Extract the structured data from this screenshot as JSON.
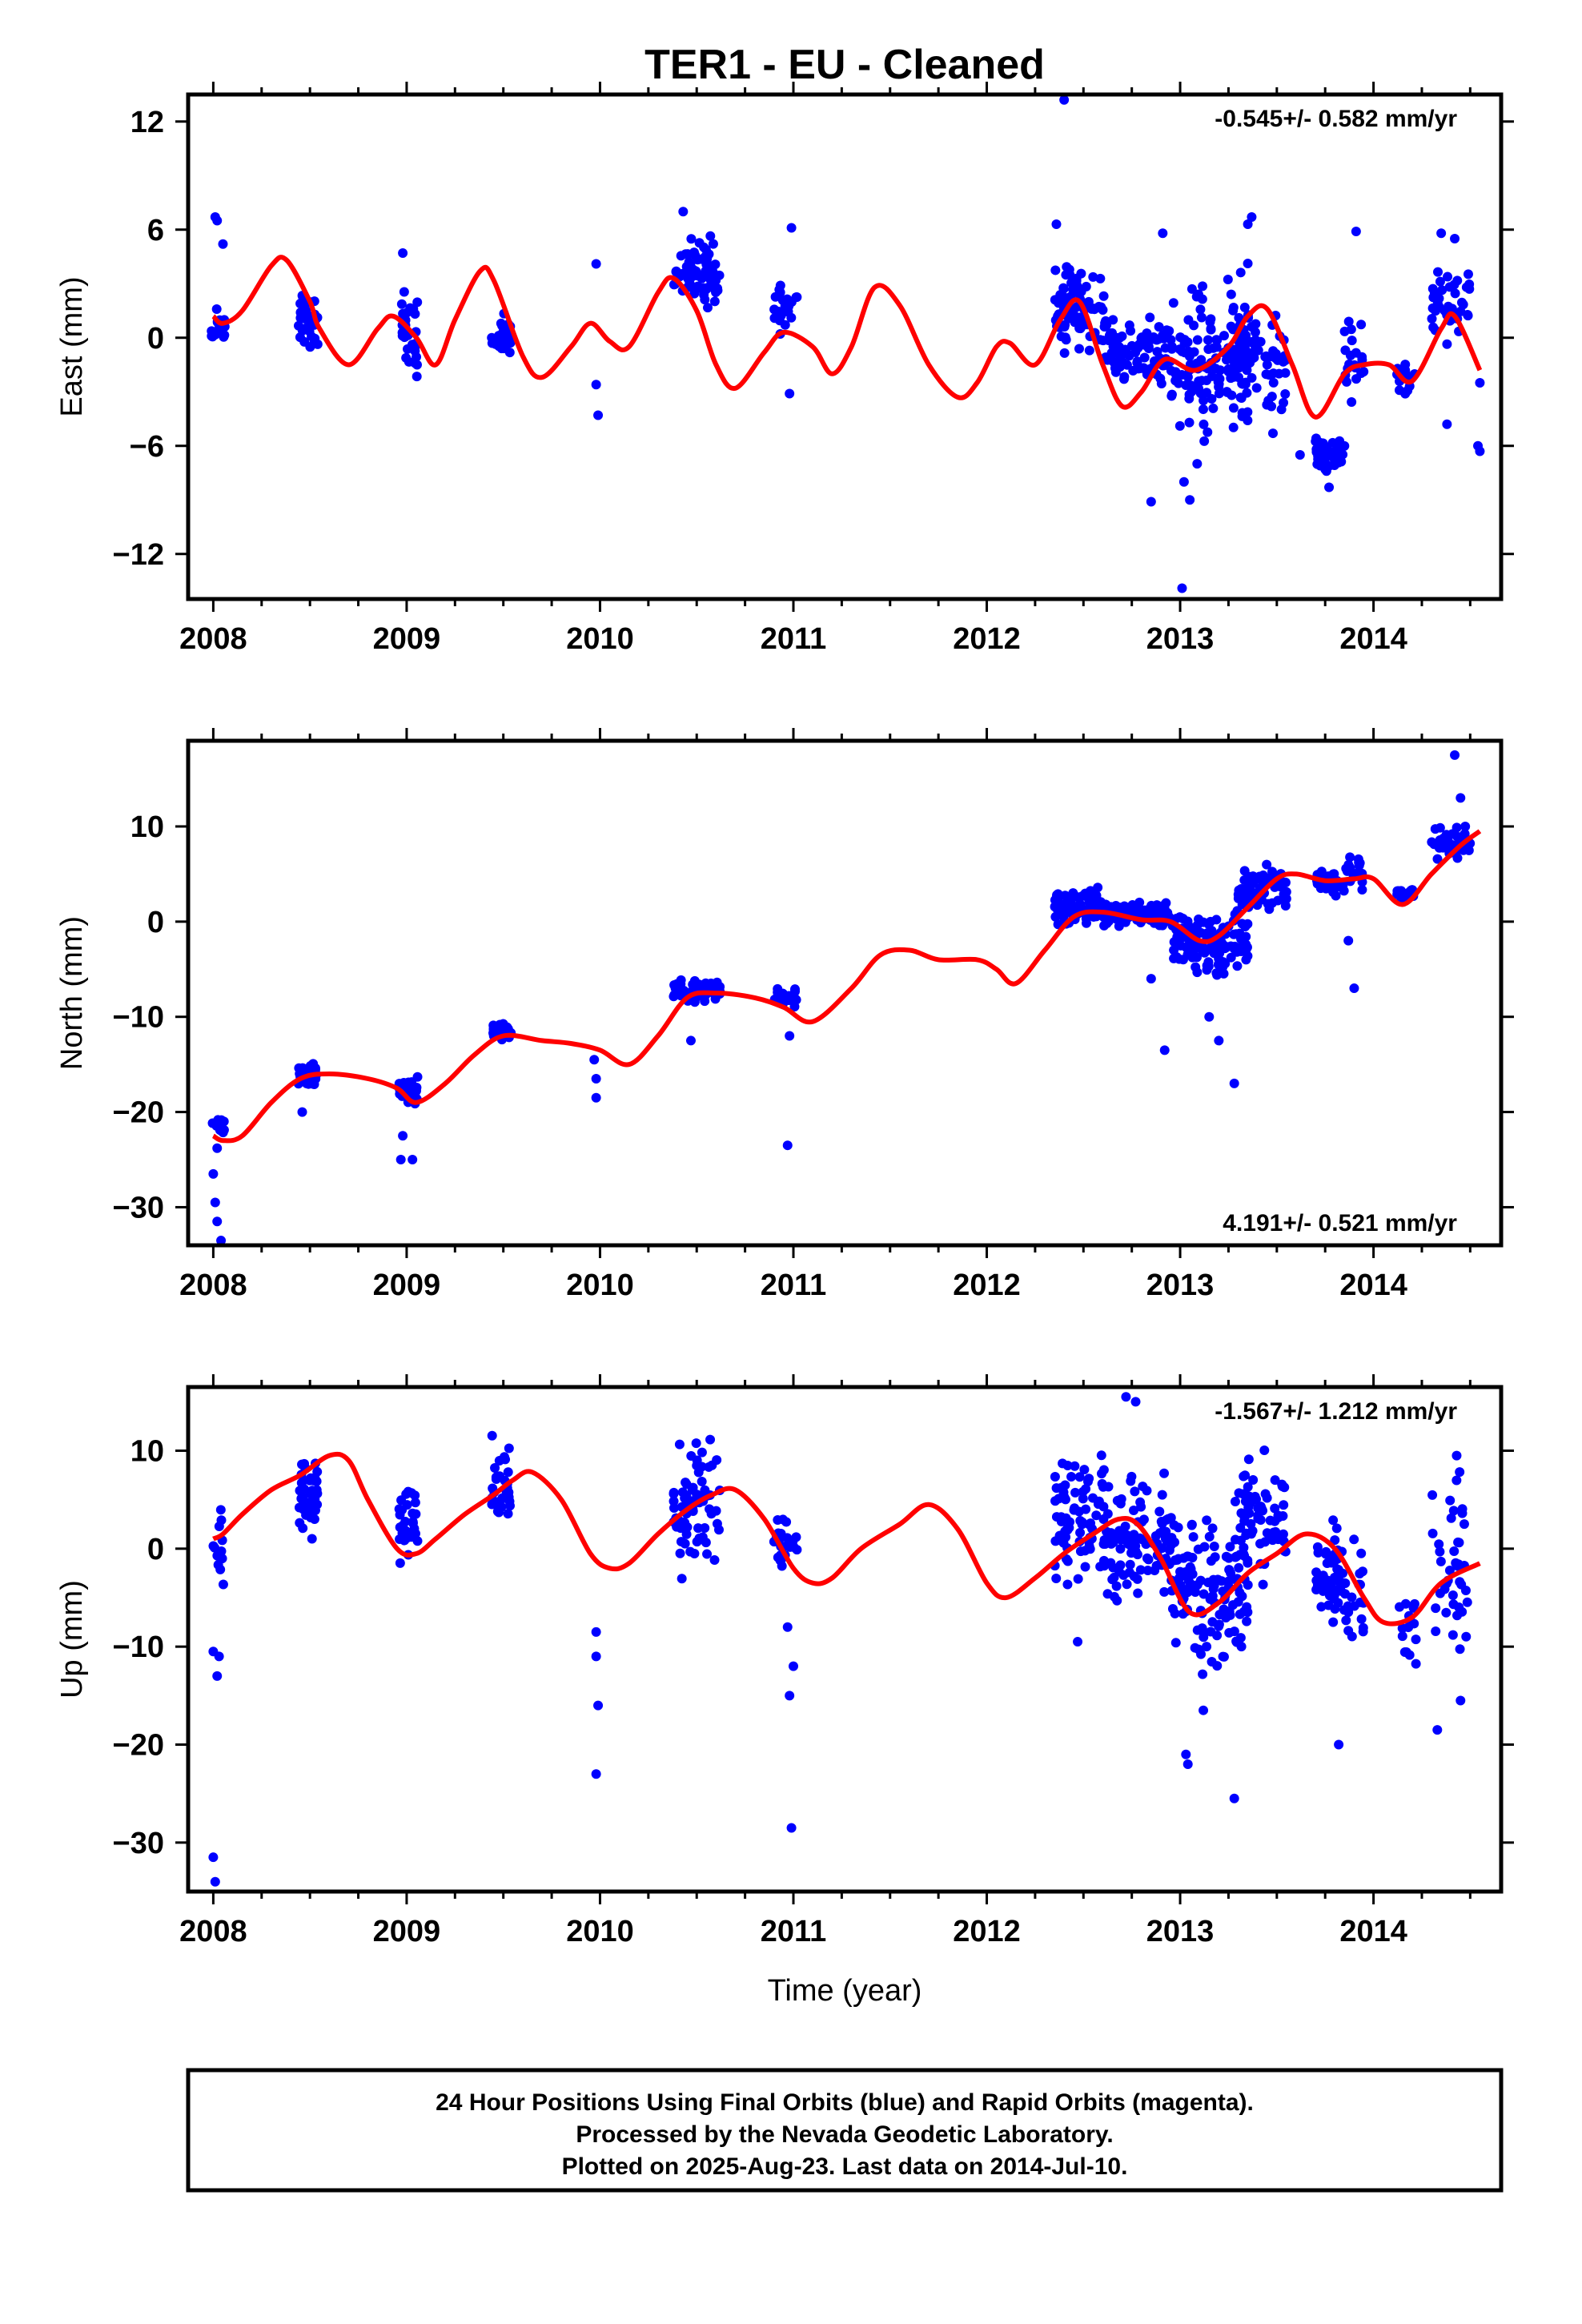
{
  "title": "TER1  - EU - Cleaned",
  "xlabel": "Time (year)",
  "footer": {
    "lines": [
      "24 Hour Positions Using Final Orbits (blue) and Rapid Orbits (magenta).",
      "Processed by the Nevada Geodetic Laboratory.",
      "Plotted on 2025-Aug-23. Last data on 2014-Jul-10."
    ]
  },
  "colors": {
    "points": "#0000ff",
    "fit": "#ff0000",
    "frame": "#000000"
  },
  "chart_data": [
    {
      "type": "scatter",
      "ylabel": "East (mm)",
      "rate_text": "-0.545+/- 0.582 mm/yr",
      "xlim": [
        2007.87,
        2014.66
      ],
      "ylim": [
        -14.5,
        13.5
      ],
      "xticks": [
        2008,
        2009,
        2010,
        2011,
        2012,
        2013,
        2014
      ],
      "yticks": [
        12,
        6,
        0,
        -6,
        -12
      ],
      "ytick_labels": [
        "12",
        "6",
        "0",
        "−6",
        "−12"
      ],
      "clusters": [
        {
          "x": [
            2007.99,
            2008.06
          ],
          "y": [
            -1.5,
            2.5
          ],
          "n": 14
        },
        {
          "x": [
            2008.44,
            2008.54
          ],
          "y": [
            -1.5,
            3.5
          ],
          "n": 40
        },
        {
          "x": [
            2008.96,
            2009.06
          ],
          "y": [
            -3.0,
            3.5
          ],
          "n": 30
        },
        {
          "x": [
            2009.44,
            2009.54
          ],
          "y": [
            -1.5,
            1.8
          ],
          "n": 30
        },
        {
          "x": [
            2010.38,
            2010.62
          ],
          "y": [
            1.0,
            6.0
          ],
          "n": 70
        },
        {
          "x": [
            2010.9,
            2011.02
          ],
          "y": [
            -0.5,
            3.5
          ],
          "n": 24
        },
        {
          "x": [
            2012.35,
            2012.62
          ],
          "y": [
            -1.5,
            5.0
          ],
          "n": 80
        },
        {
          "x": [
            2012.6,
            2012.95
          ],
          "y": [
            -3.5,
            2.0
          ],
          "n": 90
        },
        {
          "x": [
            2012.95,
            2013.35
          ],
          "y": [
            -7.5,
            5.0
          ],
          "n": 130
        },
        {
          "x": [
            2013.3,
            2013.55
          ],
          "y": [
            -6.0,
            3.0
          ],
          "n": 70
        },
        {
          "x": [
            2013.7,
            2013.85
          ],
          "y": [
            -8.0,
            -5.0
          ],
          "n": 50
        },
        {
          "x": [
            2013.85,
            2013.95
          ],
          "y": [
            -4.0,
            2.0
          ],
          "n": 20
        },
        {
          "x": [
            2014.12,
            2014.22
          ],
          "y": [
            -4.0,
            -0.5
          ],
          "n": 15
        },
        {
          "x": [
            2014.3,
            2014.5
          ],
          "y": [
            -1.0,
            5.0
          ],
          "n": 40
        }
      ],
      "outliers": [
        {
          "x": 2008.01,
          "y": 6.7
        },
        {
          "x": 2008.02,
          "y": 6.5
        },
        {
          "x": 2008.05,
          "y": 5.2
        },
        {
          "x": 2008.98,
          "y": 4.7
        },
        {
          "x": 2009.98,
          "y": 4.1
        },
        {
          "x": 2009.98,
          "y": -2.6
        },
        {
          "x": 2009.99,
          "y": -4.3
        },
        {
          "x": 2010.43,
          "y": 7.0
        },
        {
          "x": 2010.99,
          "y": 6.1
        },
        {
          "x": 2010.98,
          "y": -3.1
        },
        {
          "x": 2012.4,
          "y": 13.2
        },
        {
          "x": 2012.36,
          "y": 6.3
        },
        {
          "x": 2012.85,
          "y": -9.1
        },
        {
          "x": 2012.91,
          "y": 5.8
        },
        {
          "x": 2013.01,
          "y": -13.9
        },
        {
          "x": 2013.05,
          "y": -9.0
        },
        {
          "x": 2013.02,
          "y": -8.0
        },
        {
          "x": 2013.37,
          "y": 6.7
        },
        {
          "x": 2013.35,
          "y": 6.3
        },
        {
          "x": 2013.62,
          "y": -6.5
        },
        {
          "x": 2013.91,
          "y": 5.9
        },
        {
          "x": 2013.77,
          "y": -8.3
        },
        {
          "x": 2014.35,
          "y": 5.8
        },
        {
          "x": 2014.42,
          "y": 5.5
        },
        {
          "x": 2014.38,
          "y": -4.8
        },
        {
          "x": 2014.55,
          "y": -2.5
        },
        {
          "x": 2014.54,
          "y": -6.0
        },
        {
          "x": 2014.55,
          "y": -6.3
        }
      ],
      "fit": {
        "x": [
          2008.0,
          2008.05,
          2008.15,
          2008.3,
          2008.38,
          2008.5,
          2008.55,
          2008.7,
          2008.85,
          2008.93,
          2009.05,
          2009.15,
          2009.25,
          2009.38,
          2009.45,
          2009.6,
          2009.7,
          2009.85,
          2009.95,
          2010.05,
          2010.15,
          2010.3,
          2010.38,
          2010.5,
          2010.6,
          2010.7,
          2010.85,
          2010.95,
          2011.1,
          2011.2,
          2011.3,
          2011.42,
          2011.55,
          2011.7,
          2011.85,
          2011.95,
          2012.05,
          2012.12,
          2012.25,
          2012.38,
          2012.48,
          2012.6,
          2012.7,
          2012.8,
          2012.92,
          2013.08,
          2013.25,
          2013.35,
          2013.45,
          2013.58,
          2013.7,
          2013.85,
          2013.95,
          2014.08,
          2014.2,
          2014.35,
          2014.42,
          2014.55
        ],
        "y": [
          1.2,
          0.8,
          1.5,
          4.0,
          4.3,
          2.0,
          0.5,
          -1.5,
          0.5,
          1.2,
          0.0,
          -1.5,
          1.0,
          3.7,
          3.2,
          -1.0,
          -2.2,
          -0.5,
          0.8,
          -0.2,
          -0.5,
          2.5,
          3.3,
          1.5,
          -1.5,
          -2.8,
          -0.8,
          0.3,
          -0.5,
          -2.0,
          -0.5,
          2.8,
          1.8,
          -1.5,
          -3.3,
          -2.5,
          -0.5,
          -0.3,
          -1.5,
          1.0,
          2.0,
          -1.5,
          -3.8,
          -3.0,
          -1.2,
          -1.8,
          -0.5,
          1.2,
          1.6,
          -1.5,
          -4.4,
          -2.0,
          -1.5,
          -1.5,
          -2.4,
          0.5,
          1.2,
          -1.8
        ]
      }
    },
    {
      "type": "scatter",
      "ylabel": "North (mm)",
      "rate_text": "4.191+/- 0.521 mm/yr",
      "xlim": [
        2007.87,
        2014.66
      ],
      "ylim": [
        -34,
        19
      ],
      "xticks": [
        2008,
        2009,
        2010,
        2011,
        2012,
        2013,
        2014
      ],
      "yticks": [
        10,
        0,
        -10,
        -20,
        -30
      ],
      "ytick_labels": [
        "10",
        "0",
        "−10",
        "−20",
        "−30"
      ],
      "clusters": [
        {
          "x": [
            2007.99,
            2008.06
          ],
          "y": [
            -23.0,
            -20.0
          ],
          "n": 14
        },
        {
          "x": [
            2008.44,
            2008.54
          ],
          "y": [
            -17.5,
            -14.5
          ],
          "n": 40
        },
        {
          "x": [
            2008.96,
            2009.06
          ],
          "y": [
            -20.0,
            -15.5
          ],
          "n": 30
        },
        {
          "x": [
            2009.44,
            2009.54
          ],
          "y": [
            -12.5,
            -10.5
          ],
          "n": 30
        },
        {
          "x": [
            2010.38,
            2010.62
          ],
          "y": [
            -9.0,
            -5.5
          ],
          "n": 70
        },
        {
          "x": [
            2010.9,
            2011.02
          ],
          "y": [
            -9.5,
            -6.5
          ],
          "n": 24
        },
        {
          "x": [
            2012.35,
            2012.62
          ],
          "y": [
            -1.0,
            4.0
          ],
          "n": 80
        },
        {
          "x": [
            2012.6,
            2012.95
          ],
          "y": [
            -1.0,
            2.5
          ],
          "n": 90
        },
        {
          "x": [
            2012.95,
            2013.35
          ],
          "y": [
            -7.0,
            2.5
          ],
          "n": 130
        },
        {
          "x": [
            2013.3,
            2013.55
          ],
          "y": [
            0.5,
            6.5
          ],
          "n": 70
        },
        {
          "x": [
            2013.7,
            2013.85
          ],
          "y": [
            2.0,
            6.0
          ],
          "n": 50
        },
        {
          "x": [
            2013.85,
            2013.95
          ],
          "y": [
            3.0,
            7.5
          ],
          "n": 20
        },
        {
          "x": [
            2014.12,
            2014.22
          ],
          "y": [
            2.0,
            4.0
          ],
          "n": 15
        },
        {
          "x": [
            2014.3,
            2014.5
          ],
          "y": [
            6.0,
            11.0
          ],
          "n": 40
        }
      ],
      "outliers": [
        {
          "x": 2008.0,
          "y": -26.5
        },
        {
          "x": 2008.01,
          "y": -29.5
        },
        {
          "x": 2008.02,
          "y": -31.5
        },
        {
          "x": 2008.04,
          "y": -33.5
        },
        {
          "x": 2008.02,
          "y": -23.8
        },
        {
          "x": 2008.46,
          "y": -20.0
        },
        {
          "x": 2008.97,
          "y": -25.0
        },
        {
          "x": 2009.03,
          "y": -25.0
        },
        {
          "x": 2008.98,
          "y": -22.5
        },
        {
          "x": 2009.98,
          "y": -18.5
        },
        {
          "x": 2009.98,
          "y": -16.5
        },
        {
          "x": 2009.97,
          "y": -14.5
        },
        {
          "x": 2010.47,
          "y": -12.5
        },
        {
          "x": 2010.97,
          "y": -23.5
        },
        {
          "x": 2010.98,
          "y": -12.0
        },
        {
          "x": 2012.92,
          "y": -13.5
        },
        {
          "x": 2013.2,
          "y": -12.5
        },
        {
          "x": 2013.28,
          "y": -17.0
        },
        {
          "x": 2013.15,
          "y": -10.0
        },
        {
          "x": 2012.85,
          "y": -6.0
        },
        {
          "x": 2013.9,
          "y": -7.0
        },
        {
          "x": 2013.87,
          "y": -2.0
        },
        {
          "x": 2014.42,
          "y": 17.5
        },
        {
          "x": 2014.45,
          "y": 13.0
        }
      ],
      "fit": {
        "x": [
          2008.0,
          2008.05,
          2008.15,
          2008.3,
          2008.45,
          2008.6,
          2008.8,
          2008.95,
          2009.05,
          2009.2,
          2009.35,
          2009.5,
          2009.7,
          2009.85,
          2010.0,
          2010.15,
          2010.3,
          2010.45,
          2010.6,
          2010.8,
          2010.95,
          2011.1,
          2011.3,
          2011.45,
          2011.6,
          2011.75,
          2011.95,
          2012.05,
          2012.15,
          2012.3,
          2012.45,
          2012.6,
          2012.8,
          2012.95,
          2013.1,
          2013.2,
          2013.35,
          2013.5,
          2013.6,
          2013.75,
          2013.9,
          2014.0,
          2014.15,
          2014.3,
          2014.45,
          2014.55
        ],
        "y": [
          -22.5,
          -23.0,
          -22.5,
          -19.0,
          -16.5,
          -16.0,
          -16.5,
          -17.5,
          -19.0,
          -17.0,
          -14.0,
          -12.0,
          -12.5,
          -12.8,
          -13.5,
          -15.0,
          -12.0,
          -8.0,
          -7.5,
          -8.0,
          -9.0,
          -10.5,
          -7.0,
          -3.5,
          -3.0,
          -4.0,
          -4.0,
          -5.0,
          -6.5,
          -3.0,
          0.5,
          1.0,
          0.2,
          0.0,
          -2.0,
          -1.5,
          1.5,
          4.5,
          5.0,
          4.3,
          4.5,
          4.5,
          1.8,
          5.0,
          8.0,
          9.5
        ]
      }
    },
    {
      "type": "scatter",
      "ylabel": "Up (mm)",
      "rate_text": "-1.567+/- 1.212 mm/yr",
      "xlim": [
        2007.87,
        2014.66
      ],
      "ylim": [
        -35,
        16.5
      ],
      "xticks": [
        2008,
        2009,
        2010,
        2011,
        2012,
        2013,
        2014
      ],
      "yticks": [
        10,
        0,
        -10,
        -20,
        -30
      ],
      "ytick_labels": [
        "10",
        "0",
        "−10",
        "−20",
        "−30"
      ],
      "clusters": [
        {
          "x": [
            2007.99,
            2008.06
          ],
          "y": [
            -6.0,
            5.0
          ],
          "n": 12
        },
        {
          "x": [
            2008.44,
            2008.54
          ],
          "y": [
            0.0,
            11.0
          ],
          "n": 40
        },
        {
          "x": [
            2008.96,
            2009.06
          ],
          "y": [
            -4.0,
            10.0
          ],
          "n": 30
        },
        {
          "x": [
            2009.44,
            2009.54
          ],
          "y": [
            0.0,
            13.0
          ],
          "n": 30
        },
        {
          "x": [
            2010.38,
            2010.62
          ],
          "y": [
            -4.0,
            12.0
          ],
          "n": 70
        },
        {
          "x": [
            2010.9,
            2011.02
          ],
          "y": [
            -4.0,
            5.0
          ],
          "n": 24
        },
        {
          "x": [
            2012.35,
            2012.62
          ],
          "y": [
            -5.0,
            12.0
          ],
          "n": 80
        },
        {
          "x": [
            2012.6,
            2012.95
          ],
          "y": [
            -8.0,
            10.0
          ],
          "n": 90
        },
        {
          "x": [
            2012.95,
            2013.35
          ],
          "y": [
            -15.0,
            6.0
          ],
          "n": 130
        },
        {
          "x": [
            2013.3,
            2013.55
          ],
          "y": [
            -6.0,
            11.0
          ],
          "n": 70
        },
        {
          "x": [
            2013.7,
            2013.85
          ],
          "y": [
            -10.0,
            5.0
          ],
          "n": 50
        },
        {
          "x": [
            2013.85,
            2013.95
          ],
          "y": [
            -12.0,
            2.0
          ],
          "n": 20
        },
        {
          "x": [
            2014.12,
            2014.22
          ],
          "y": [
            -14.0,
            -3.0
          ],
          "n": 15
        },
        {
          "x": [
            2014.3,
            2014.5
          ],
          "y": [
            -15.0,
            10.0
          ],
          "n": 40
        }
      ],
      "outliers": [
        {
          "x": 2008.0,
          "y": -31.5
        },
        {
          "x": 2008.01,
          "y": -34.0
        },
        {
          "x": 2008.0,
          "y": -10.5
        },
        {
          "x": 2008.02,
          "y": -13.0
        },
        {
          "x": 2008.03,
          "y": -11.0
        },
        {
          "x": 2009.98,
          "y": -23.0
        },
        {
          "x": 2009.99,
          "y": -16.0
        },
        {
          "x": 2009.98,
          "y": -11.0
        },
        {
          "x": 2009.98,
          "y": -8.5
        },
        {
          "x": 2010.99,
          "y": -28.5
        },
        {
          "x": 2010.98,
          "y": -15.0
        },
        {
          "x": 2011.0,
          "y": -12.0
        },
        {
          "x": 2010.97,
          "y": -8.0
        },
        {
          "x": 2012.72,
          "y": 15.5
        },
        {
          "x": 2012.77,
          "y": 15.0
        },
        {
          "x": 2013.03,
          "y": -21.0
        },
        {
          "x": 2013.04,
          "y": -22.0
        },
        {
          "x": 2013.28,
          "y": -25.5
        },
        {
          "x": 2013.12,
          "y": -16.5
        },
        {
          "x": 2013.82,
          "y": -20.0
        },
        {
          "x": 2014.33,
          "y": -18.5
        },
        {
          "x": 2014.43,
          "y": 9.5
        },
        {
          "x": 2012.47,
          "y": -9.5
        },
        {
          "x": 2014.45,
          "y": -15.5
        }
      ],
      "fit": {
        "x": [
          2008.0,
          2008.05,
          2008.15,
          2008.3,
          2008.45,
          2008.6,
          2008.7,
          2008.8,
          2008.95,
          2009.05,
          2009.15,
          2009.3,
          2009.45,
          2009.55,
          2009.65,
          2009.8,
          2009.95,
          2010.05,
          2010.15,
          2010.3,
          2010.45,
          2010.58,
          2010.7,
          2010.85,
          2011.0,
          2011.1,
          2011.2,
          2011.35,
          2011.55,
          2011.7,
          2011.85,
          2012.0,
          2012.1,
          2012.25,
          2012.4,
          2012.55,
          2012.68,
          2012.78,
          2012.9,
          2013.05,
          2013.2,
          2013.35,
          2013.5,
          2013.65,
          2013.8,
          2013.95,
          2014.05,
          2014.2,
          2014.35,
          2014.55
        ],
        "y": [
          1.0,
          1.5,
          3.5,
          6.0,
          7.5,
          9.5,
          9.0,
          5.0,
          0.0,
          -0.5,
          1.0,
          3.5,
          5.5,
          7.0,
          7.8,
          5.0,
          -0.5,
          -2.0,
          -1.5,
          1.5,
          4.0,
          5.5,
          6.0,
          3.0,
          -2.0,
          -3.5,
          -3.0,
          0.0,
          2.5,
          4.5,
          2.0,
          -3.5,
          -5.0,
          -3.0,
          -0.5,
          1.5,
          3.0,
          2.5,
          -1.0,
          -6.5,
          -5.5,
          -2.5,
          -0.5,
          1.5,
          0.0,
          -5.0,
          -7.5,
          -7.0,
          -3.5,
          -1.5
        ]
      }
    }
  ]
}
